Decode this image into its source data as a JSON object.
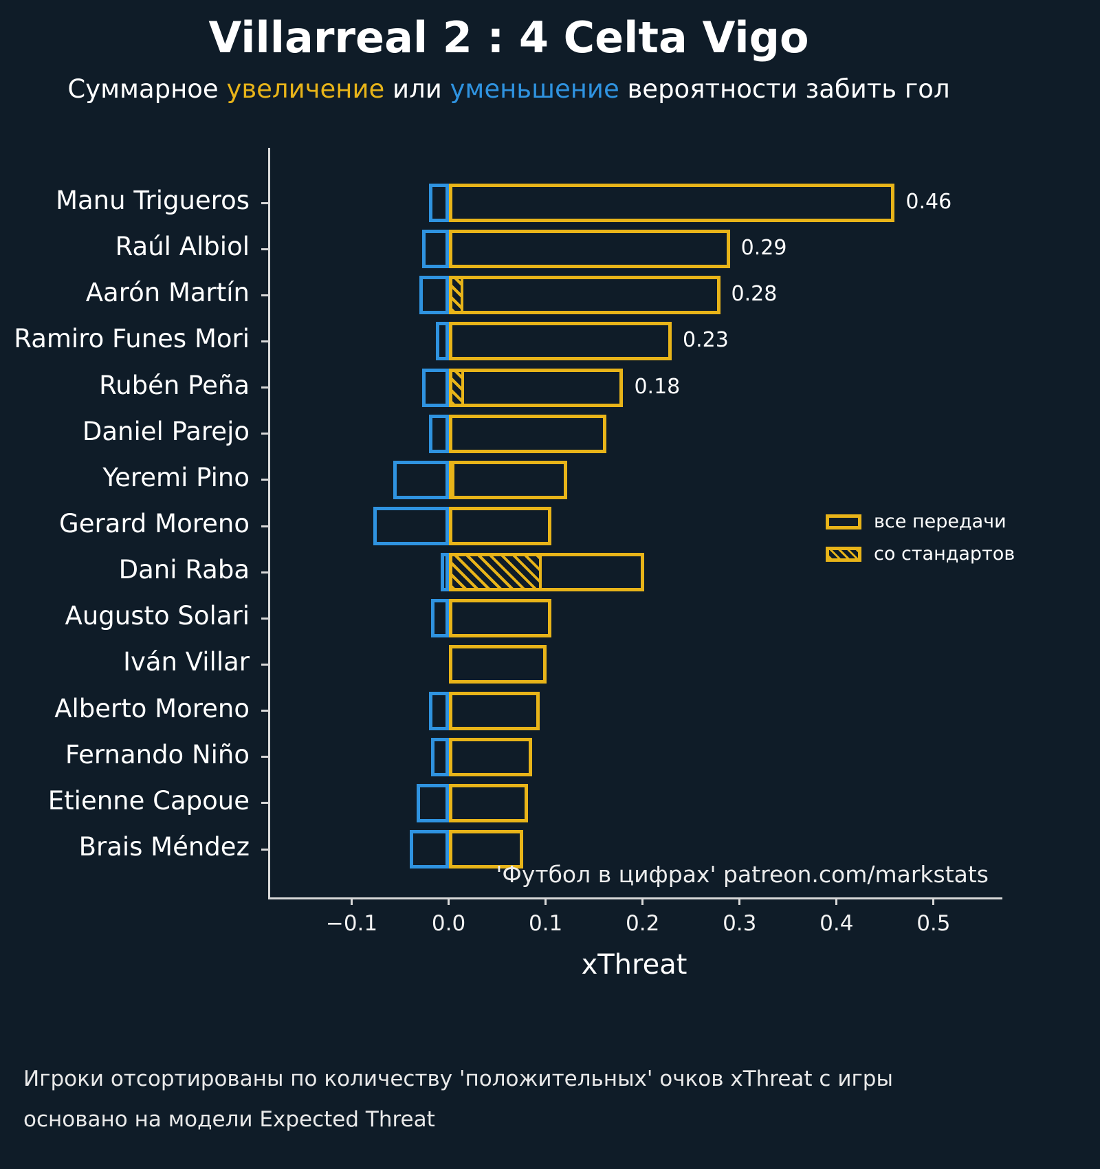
{
  "header": {
    "title": "Villarreal 2 : 4 Celta Vigo",
    "subtitle_parts": {
      "p1": "Суммарное ",
      "increase": "увеличение",
      "p2": " или ",
      "decrease": "уменьшение",
      "p3": " вероятности забить гол"
    }
  },
  "colors": {
    "background": "#0f1c28",
    "positive": "#e8b419",
    "negative": "#2f93e0",
    "text": "#ffffff"
  },
  "legend": {
    "all_passes": "все передачи",
    "set_pieces": "со стандартов"
  },
  "watermark": "'Футбол в цифрах' patreon.com/markstats",
  "xlabel": "xThreat",
  "footer": {
    "line1": "Игроки отсортированы по количеству 'положительных' очков xThreat с игры",
    "line2": "основано на модели Expected Threat"
  },
  "chart_data": {
    "type": "bar",
    "orientation": "horizontal",
    "title": "Villarreal 2 : 4 Celta Vigo",
    "xlabel": "xThreat",
    "xlim": [
      -0.184,
      0.571
    ],
    "grid": false,
    "legend_position": "center right",
    "xticks": [
      {
        "value": -0.1,
        "label": "−0.1"
      },
      {
        "value": 0.0,
        "label": "0.0"
      },
      {
        "value": 0.1,
        "label": "0.1"
      },
      {
        "value": 0.2,
        "label": "0.2"
      },
      {
        "value": 0.3,
        "label": "0.3"
      },
      {
        "value": 0.4,
        "label": "0.4"
      },
      {
        "value": 0.5,
        "label": "0.5"
      }
    ],
    "players": [
      {
        "name": "Manu Trigueros",
        "positive": 0.46,
        "negative": -0.02,
        "set_piece": 0.0,
        "label": "0.46"
      },
      {
        "name": "Raúl Albiol",
        "positive": 0.29,
        "negative": -0.027,
        "set_piece": 0.0,
        "label": "0.29"
      },
      {
        "name": "Aarón Martín",
        "positive": 0.28,
        "negative": -0.03,
        "set_piece": 0.015,
        "label": "0.28"
      },
      {
        "name": "Ramiro Funes Mori",
        "positive": 0.23,
        "negative": -0.013,
        "set_piece": 0.0,
        "label": "0.23"
      },
      {
        "name": "Rubén Peña",
        "positive": 0.18,
        "negative": -0.027,
        "set_piece": 0.016,
        "label": "0.18"
      },
      {
        "name": "Daniel Parejo",
        "positive": 0.163,
        "negative": -0.02,
        "set_piece": 0.0,
        "label": ""
      },
      {
        "name": "Yeremi Pino",
        "positive": 0.122,
        "negative": -0.057,
        "set_piece": 0.005,
        "label": ""
      },
      {
        "name": "Gerard Moreno",
        "positive": 0.106,
        "negative": -0.078,
        "set_piece": 0.0,
        "label": ""
      },
      {
        "name": "Dani Raba",
        "positive": 0.202,
        "negative": -0.008,
        "set_piece": 0.096,
        "label": ""
      },
      {
        "name": "Augusto Solari",
        "positive": 0.106,
        "negative": -0.018,
        "set_piece": 0.0,
        "label": ""
      },
      {
        "name": "Iván Villar",
        "positive": 0.101,
        "negative": 0.0,
        "set_piece": 0.0,
        "label": ""
      },
      {
        "name": "Alberto Moreno",
        "positive": 0.094,
        "negative": -0.02,
        "set_piece": 0.0,
        "label": ""
      },
      {
        "name": "Fernando Niño",
        "positive": 0.086,
        "negative": -0.018,
        "set_piece": 0.0,
        "label": ""
      },
      {
        "name": "Etienne Capoue",
        "positive": 0.082,
        "negative": -0.033,
        "set_piece": 0.0,
        "label": ""
      },
      {
        "name": "Brais Méndez",
        "positive": 0.077,
        "negative": -0.04,
        "set_piece": 0.0,
        "label": ""
      }
    ]
  }
}
